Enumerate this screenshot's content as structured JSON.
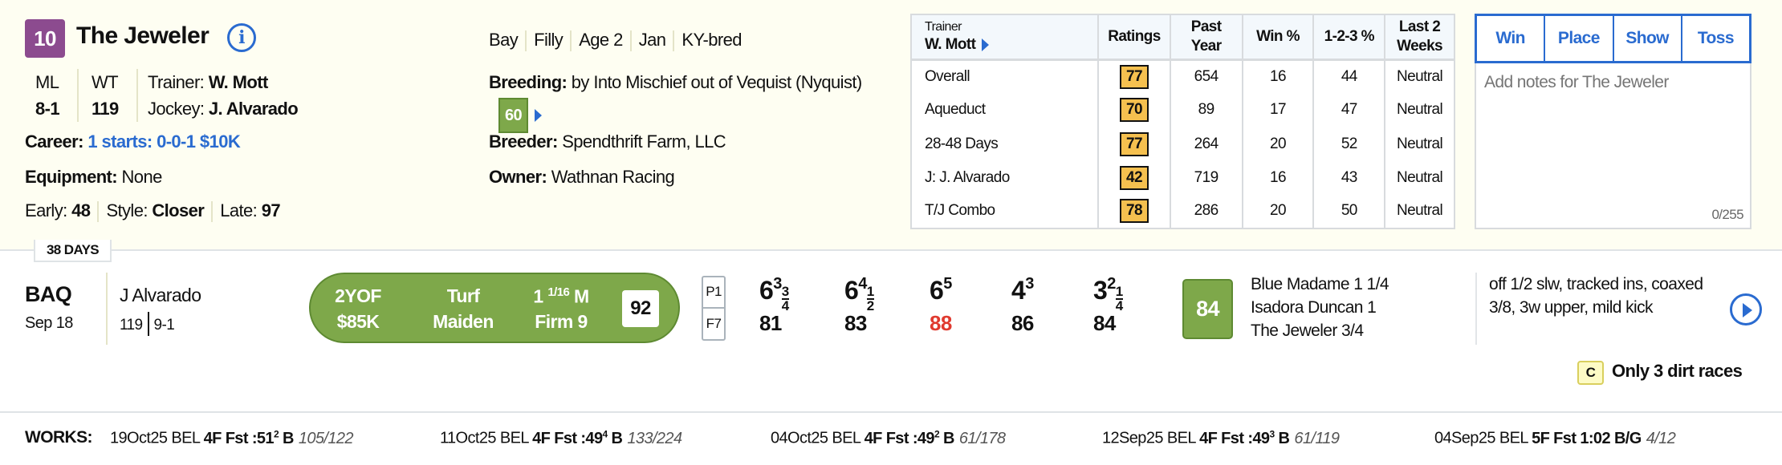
{
  "horse": {
    "number": "10",
    "name": "The Jeweler",
    "number_color": "#8c4b8f",
    "ml_label": "ML",
    "ml": "8-1",
    "wt_label": "WT",
    "wt": "119",
    "trainer_label": "Trainer:",
    "trainer": "W. Mott",
    "jockey_label": "Jockey:",
    "jockey": "J. Alvarado",
    "career_label": "Career:",
    "career": "1 starts: 0-0-1 $10K",
    "equipment_label": "Equipment:",
    "equipment": "None",
    "early_label": "Early:",
    "early": "48",
    "style_label": "Style:",
    "style": "Closer",
    "late_label": "Late:",
    "late": "97",
    "attrs": [
      "Bay",
      "Filly",
      "Age 2",
      "Jan",
      "KY-bred"
    ],
    "breeding_label": "Breeding:",
    "breeding": "by Into Mischief out of Vequist (Nyquist)",
    "breeding_rating": "60",
    "breeder_label": "Breeder:",
    "breeder": "Spendthrift Farm, LLC",
    "owner_label": "Owner:",
    "owner": "Wathnan Racing"
  },
  "trainer_table": {
    "header_small": "Trainer",
    "header_name": "W. Mott",
    "columns": [
      "Ratings",
      "Past Year",
      "Win %",
      "1-2-3 %",
      "Last 2 Weeks"
    ],
    "rows": [
      {
        "label": "Overall",
        "rating": "77",
        "past": "654",
        "win": "16",
        "itm": "44",
        "last2": "Neutral"
      },
      {
        "label": "Aqueduct",
        "rating": "70",
        "past": "89",
        "win": "17",
        "itm": "47",
        "last2": "Neutral"
      },
      {
        "label": "28-48 Days",
        "rating": "77",
        "past": "264",
        "win": "20",
        "itm": "52",
        "last2": "Neutral"
      },
      {
        "label": "J: J. Alvarado",
        "rating": "42",
        "past": "719",
        "win": "16",
        "itm": "43",
        "last2": "Neutral"
      },
      {
        "label": "T/J Combo",
        "rating": "78",
        "past": "286",
        "win": "20",
        "itm": "50",
        "last2": "Neutral"
      }
    ]
  },
  "notes": {
    "buttons": [
      "Win",
      "Place",
      "Show",
      "Toss"
    ],
    "placeholder": "Add notes for The Jeweler",
    "count": "0/255"
  },
  "race": {
    "days_since": "38 DAYS",
    "track": "BAQ",
    "date": "Sep 18",
    "jockey": "J Alvarado",
    "weight": "119",
    "odds": "9-1",
    "class1": "2YOF",
    "class2": "$85K",
    "surface": "Turf",
    "type": "Maiden",
    "dist_whole": "1",
    "dist_frac": "1/16",
    "dist_unit": "M",
    "condition": "Firm 9",
    "speed": "92",
    "post": "P1",
    "finish_field": "F7",
    "calls": [
      {
        "pos": "6",
        "len": "3",
        "frac_n": "3",
        "frac_d": "4",
        "fig": "81"
      },
      {
        "pos": "6",
        "len": "4",
        "frac_n": "1",
        "frac_d": "2",
        "fig": "83"
      },
      {
        "pos": "6",
        "len": "5",
        "fig": "88",
        "fig_color": "#e03a2f"
      },
      {
        "pos": "4",
        "len": "3",
        "fig": "86"
      },
      {
        "pos": "3",
        "len": "2",
        "frac_n": "1",
        "frac_d": "4",
        "fig": "84"
      }
    ],
    "final_fig": "84",
    "finishers": [
      "Blue Madame 1 1/4",
      "Isadora Duncan 1",
      "The Jeweler 3/4"
    ],
    "comment": "off 1/2 slw, tracked ins, coaxed 3/8, 3w upper, mild kick",
    "note_badge": "C",
    "note_text": "Only 3 dirt races"
  },
  "works": {
    "label": "WORKS:",
    "items": [
      {
        "date": "19Oct25 BEL",
        "work": "4F Fst :51",
        "sup": "2",
        "tag": "B",
        "rank": "105/122"
      },
      {
        "date": "11Oct25 BEL",
        "work": "4F Fst :49",
        "sup": "4",
        "tag": "B",
        "rank": "133/224"
      },
      {
        "date": "04Oct25 BEL",
        "work": "4F Fst :49",
        "sup": "2",
        "tag": "B",
        "rank": "61/178"
      },
      {
        "date": "12Sep25 BEL",
        "work": "4F Fst :49",
        "sup": "3",
        "tag": "B",
        "rank": "61/119"
      },
      {
        "date": "04Sep25 BEL",
        "work": "5F Fst 1:02",
        "sup": "",
        "tag": "B/G",
        "rank": "4/12"
      }
    ]
  }
}
